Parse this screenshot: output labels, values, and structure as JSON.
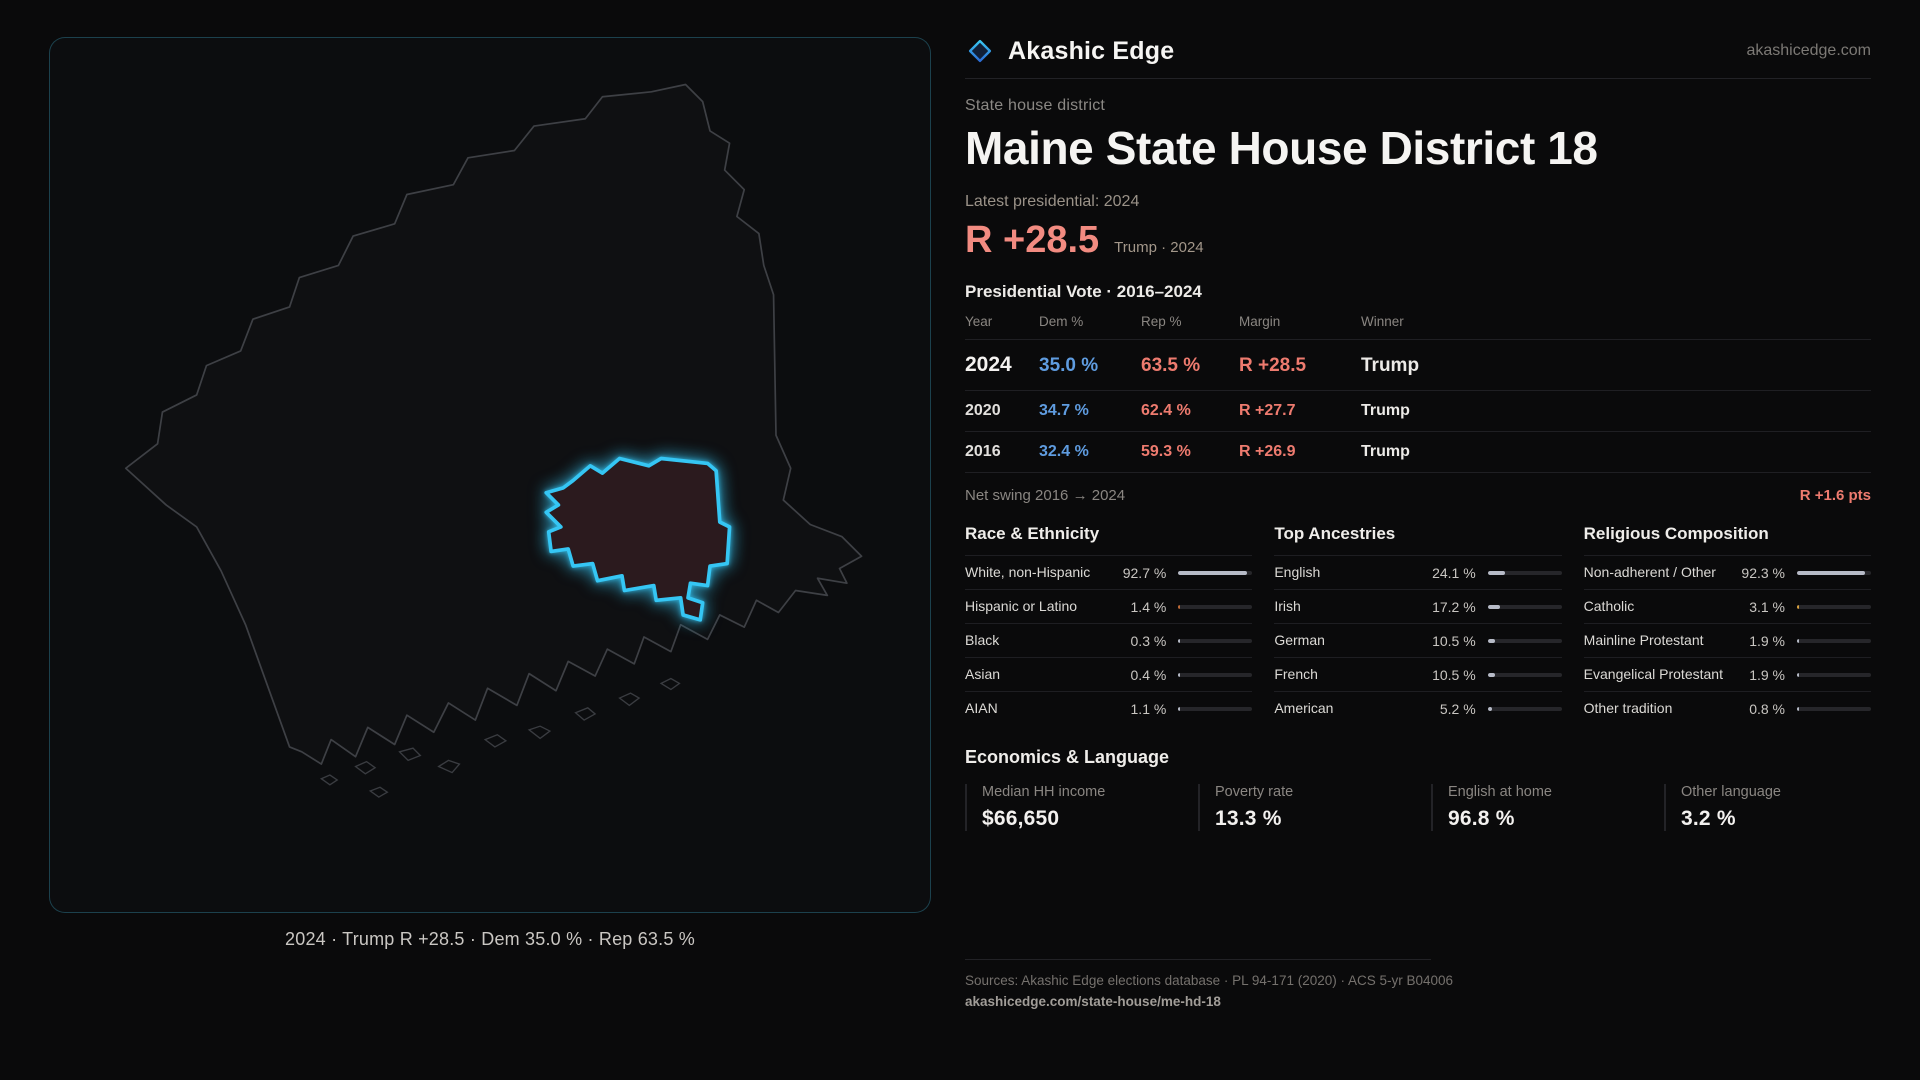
{
  "brand": {
    "name": "Akashic Edge",
    "domain": "akashicedge.com",
    "logo_icon": "diamond-icon"
  },
  "district": {
    "kicker": "State house district",
    "title": "Maine State House District 18"
  },
  "latest": {
    "label": "Latest presidential: 2024",
    "margin": "R +28.5",
    "note": "Trump · 2024"
  },
  "vote_table": {
    "title": "Presidential Vote · 2016–2024",
    "columns": [
      "Year",
      "Dem %",
      "Rep %",
      "Margin",
      "Winner"
    ],
    "rows": [
      {
        "year": "2024",
        "dem": "35.0 %",
        "rep": "63.5 %",
        "margin": "R +28.5",
        "winner": "Trump",
        "emphasis": true
      },
      {
        "year": "2020",
        "dem": "34.7 %",
        "rep": "62.4 %",
        "margin": "R +27.7",
        "winner": "Trump",
        "emphasis": false
      },
      {
        "year": "2016",
        "dem": "32.4 %",
        "rep": "59.3 %",
        "margin": "R +26.9",
        "winner": "Trump",
        "emphasis": false
      }
    ],
    "net_swing_label": "Net swing 2016 → 2024",
    "net_swing_value": "R +1.6 pts"
  },
  "demographics": [
    {
      "title": "Race & Ethnicity",
      "rows": [
        {
          "label": "White, non-Hispanic",
          "value": "92.7 %",
          "pct": 92.7,
          "bar": "light"
        },
        {
          "label": "Hispanic or Latino",
          "value": "1.4 %",
          "pct": 1.4,
          "bar": "orange"
        },
        {
          "label": "Black",
          "value": "0.3 %",
          "pct": 0.3,
          "bar": "light"
        },
        {
          "label": "Asian",
          "value": "0.4 %",
          "pct": 0.4,
          "bar": "light"
        },
        {
          "label": "AIAN",
          "value": "1.1 %",
          "pct": 1.1,
          "bar": "light"
        }
      ]
    },
    {
      "title": "Top Ancestries",
      "rows": [
        {
          "label": "English",
          "value": "24.1 %",
          "pct": 24.1,
          "bar": "light"
        },
        {
          "label": "Irish",
          "value": "17.2 %",
          "pct": 17.2,
          "bar": "light"
        },
        {
          "label": "German",
          "value": "10.5 %",
          "pct": 10.5,
          "bar": "light"
        },
        {
          "label": "French",
          "value": "10.5 %",
          "pct": 10.5,
          "bar": "light"
        },
        {
          "label": "American",
          "value": "5.2 %",
          "pct": 5.2,
          "bar": "light"
        }
      ]
    },
    {
      "title": "Religious Composition",
      "rows": [
        {
          "label": "Non-adherent / Other",
          "value": "92.3 %",
          "pct": 92.3,
          "bar": "light"
        },
        {
          "label": "Catholic",
          "value": "3.1 %",
          "pct": 3.1,
          "bar": "gold"
        },
        {
          "label": "Mainline Protestant",
          "value": "1.9 %",
          "pct": 1.9,
          "bar": "light"
        },
        {
          "label": "Evangelical Protestant",
          "value": "1.9 %",
          "pct": 1.9,
          "bar": "light"
        },
        {
          "label": "Other tradition",
          "value": "0.8 %",
          "pct": 0.8,
          "bar": "light"
        }
      ]
    }
  ],
  "economics": {
    "title": "Economics & Language",
    "stats": [
      {
        "label": "Median HH income",
        "value": "$66,650"
      },
      {
        "label": "Poverty rate",
        "value": "13.3 %"
      },
      {
        "label": "English at home",
        "value": "96.8 %"
      },
      {
        "label": "Other language",
        "value": "3.2 %"
      }
    ]
  },
  "map": {
    "caption": "2024 · Trump R +28.5 · Dem 35.0 % · Rep 63.5 %"
  },
  "footer": {
    "sources": "Sources: Akashic Edge elections database · PL 94-171 (2020) · ACS 5-yr B04006",
    "permalink": "akashicedge.com/state-house/me-hd-18"
  },
  "colors": {
    "accent_cyan": "#35c6f4",
    "dem_blue": "#5f9ce0",
    "rep_red": "#ee7b6f",
    "rep_red_light": "#f28b81",
    "bar_light": "#b7bbc7",
    "bar_orange": "#c06a36",
    "bar_gold": "#d8a13e"
  }
}
